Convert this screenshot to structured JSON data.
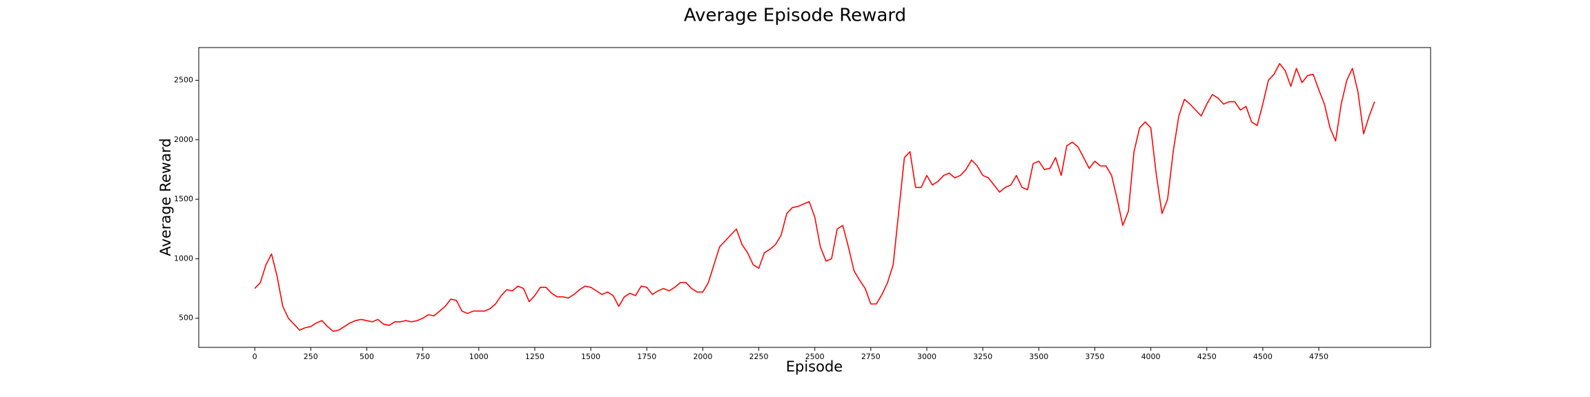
{
  "chart_data": {
    "type": "line",
    "title": "Average Episode Reward",
    "xlabel": "Episode",
    "ylabel": "Average Reward",
    "x": [
      0,
      25,
      50,
      75,
      100,
      125,
      150,
      175,
      200,
      225,
      250,
      275,
      300,
      325,
      350,
      375,
      400,
      425,
      450,
      475,
      500,
      525,
      550,
      575,
      600,
      625,
      650,
      675,
      700,
      725,
      750,
      775,
      800,
      825,
      850,
      875,
      900,
      925,
      950,
      975,
      1000,
      1025,
      1050,
      1075,
      1100,
      1125,
      1150,
      1175,
      1200,
      1225,
      1250,
      1275,
      1300,
      1325,
      1350,
      1375,
      1400,
      1425,
      1450,
      1475,
      1500,
      1525,
      1550,
      1575,
      1600,
      1625,
      1650,
      1675,
      1700,
      1725,
      1750,
      1775,
      1800,
      1825,
      1850,
      1875,
      1900,
      1925,
      1950,
      1975,
      2000,
      2025,
      2050,
      2075,
      2100,
      2125,
      2150,
      2175,
      2200,
      2225,
      2250,
      2275,
      2300,
      2325,
      2350,
      2375,
      2400,
      2425,
      2450,
      2475,
      2500,
      2525,
      2550,
      2575,
      2600,
      2625,
      2650,
      2675,
      2700,
      2725,
      2750,
      2775,
      2800,
      2825,
      2850,
      2875,
      2900,
      2925,
      2950,
      2975,
      3000,
      3025,
      3050,
      3075,
      3100,
      3125,
      3150,
      3175,
      3200,
      3225,
      3250,
      3275,
      3300,
      3325,
      3350,
      3375,
      3400,
      3425,
      3450,
      3475,
      3500,
      3525,
      3550,
      3575,
      3600,
      3625,
      3650,
      3675,
      3700,
      3725,
      3750,
      3775,
      3800,
      3825,
      3850,
      3875,
      3900,
      3925,
      3950,
      3975,
      4000,
      4025,
      4050,
      4075,
      4100,
      4125,
      4150,
      4175,
      4200,
      4225,
      4250,
      4275,
      4300,
      4325,
      4350,
      4375,
      4400,
      4425,
      4450,
      4475,
      4500,
      4525,
      4550,
      4575,
      4600,
      4625,
      4650,
      4675,
      4700,
      4725,
      4750,
      4775,
      4800,
      4825,
      4850,
      4875,
      4900,
      4925,
      4950,
      4975,
      4999
    ],
    "series": [
      {
        "name": "Average Reward",
        "color": "#ff0000",
        "values": [
          750,
          800,
          950,
          1040,
          850,
          600,
          500,
          450,
          400,
          420,
          430,
          460,
          480,
          430,
          390,
          400,
          430,
          460,
          480,
          490,
          480,
          470,
          490,
          450,
          440,
          470,
          470,
          480,
          470,
          480,
          500,
          530,
          520,
          560,
          600,
          660,
          650,
          560,
          540,
          560,
          560,
          560,
          580,
          620,
          690,
          740,
          730,
          770,
          750,
          640,
          690,
          760,
          760,
          710,
          680,
          680,
          670,
          700,
          740,
          770,
          760,
          730,
          700,
          720,
          690,
          600,
          680,
          710,
          690,
          770,
          760,
          700,
          730,
          750,
          730,
          760,
          800,
          800,
          750,
          720,
          720,
          800,
          950,
          1100,
          1150,
          1200,
          1250,
          1120,
          1050,
          950,
          920,
          1050,
          1080,
          1120,
          1200,
          1380,
          1430,
          1440,
          1460,
          1480,
          1350,
          1100,
          980,
          1000,
          1250,
          1280,
          1100,
          900,
          820,
          750,
          620,
          620,
          700,
          800,
          950,
          1400,
          1850,
          1900,
          1600,
          1600,
          1700,
          1620,
          1650,
          1700,
          1720,
          1680,
          1700,
          1750,
          1830,
          1780,
          1700,
          1680,
          1620,
          1560,
          1600,
          1620,
          1700,
          1600,
          1580,
          1800,
          1820,
          1750,
          1760,
          1850,
          1700,
          1950,
          1980,
          1940,
          1850,
          1760,
          1820,
          1780,
          1780,
          1700,
          1500,
          1280,
          1400,
          1900,
          2100,
          2150,
          2100,
          1700,
          1380,
          1500,
          1900,
          2200,
          2340,
          2300,
          2250,
          2200,
          2300,
          2380,
          2350,
          2300,
          2320,
          2320,
          2250,
          2280,
          2150,
          2120,
          2300,
          2500,
          2550,
          2640,
          2580,
          2450,
          2600,
          2480,
          2540,
          2550,
          2420,
          2300,
          2100,
          1990,
          2300,
          2500,
          2600,
          2400,
          2050,
          2200,
          2320
        ]
      }
    ],
    "xlim": [
      -250,
      5249
    ],
    "ylim": [
      255,
      2775
    ],
    "xticks": [
      0,
      250,
      500,
      750,
      1000,
      1250,
      1500,
      1750,
      2000,
      2250,
      2500,
      2750,
      3000,
      3250,
      3500,
      3750,
      4000,
      4250,
      4500,
      4750
    ],
    "yticks": [
      500,
      1000,
      1500,
      2000,
      2500
    ]
  }
}
